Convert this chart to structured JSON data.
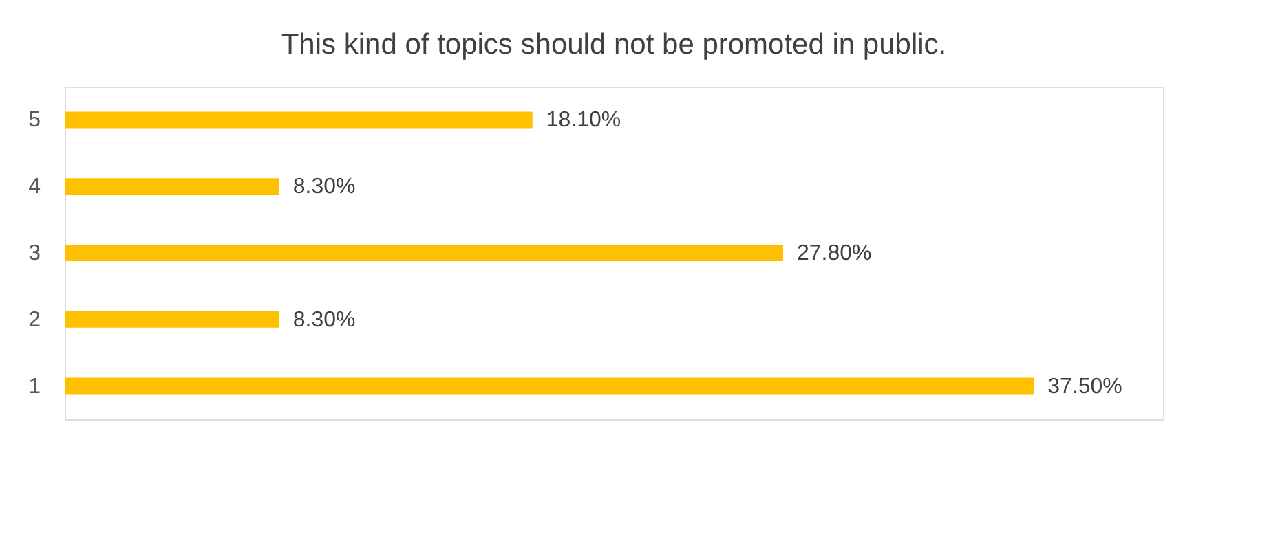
{
  "chart_data": {
    "type": "bar",
    "orientation": "horizontal",
    "title": "This kind of topics should not be promoted in public.",
    "categories": [
      "5",
      "4",
      "3",
      "2",
      "1"
    ],
    "values": [
      18.1,
      8.3,
      27.8,
      8.3,
      37.5
    ],
    "value_labels": [
      "18.10%",
      "8.30%",
      "27.80%",
      "8.30%",
      "37.50%"
    ],
    "color": "#ffc000",
    "xlim": [
      0,
      42.5
    ],
    "tick_labels": "y",
    "grid": false
  }
}
